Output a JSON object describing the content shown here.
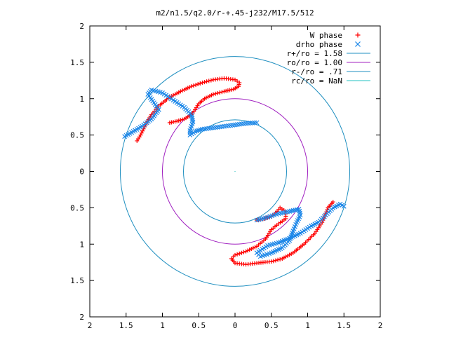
{
  "chart_data": {
    "type": "scatter",
    "title": "m2/n1.5/q2.0/r-+.45-j232/M17.5/512",
    "xlim": [
      2,
      -2
    ],
    "ylim": [
      -2,
      2
    ],
    "x_ticks": [
      {
        "value": 2,
        "label": "2"
      },
      {
        "value": 1.5,
        "label": "1.5"
      },
      {
        "value": 1,
        "label": "1"
      },
      {
        "value": 0.5,
        "label": "0.5"
      },
      {
        "value": 0,
        "label": "0"
      },
      {
        "value": -0.5,
        "label": "0.5"
      },
      {
        "value": -1,
        "label": "1"
      },
      {
        "value": -1.5,
        "label": "1.5"
      },
      {
        "value": -2,
        "label": "2"
      }
    ],
    "y_ticks": [
      {
        "value": 2,
        "label": "2"
      },
      {
        "value": 1.5,
        "label": "1.5"
      },
      {
        "value": 1,
        "label": "1"
      },
      {
        "value": 0.5,
        "label": "0.5"
      },
      {
        "value": 0,
        "label": "0"
      },
      {
        "value": -0.5,
        "label": "0.5"
      },
      {
        "value": -1,
        "label": "1"
      },
      {
        "value": -1.5,
        "label": "1.5"
      },
      {
        "value": -2,
        "label": "2"
      }
    ],
    "grid": false,
    "legend_position": "top-right",
    "series": [
      {
        "name": "W phase",
        "kind": "points",
        "marker": "+",
        "color": "#ff0000",
        "segments": [
          [
            [
              0.9,
              0.67
            ],
            [
              0.8,
              0.69
            ],
            [
              0.7,
              0.72
            ],
            [
              0.6,
              0.78
            ],
            [
              0.55,
              0.85
            ],
            [
              0.5,
              0.93
            ],
            [
              0.42,
              1.0
            ],
            [
              0.3,
              1.06
            ],
            [
              0.15,
              1.1
            ],
            [
              0.02,
              1.13
            ],
            [
              -0.05,
              1.17
            ],
            [
              -0.06,
              1.22
            ],
            [
              0.0,
              1.26
            ],
            [
              0.15,
              1.28
            ],
            [
              0.3,
              1.26
            ],
            [
              0.45,
              1.22
            ],
            [
              0.6,
              1.17
            ],
            [
              0.75,
              1.1
            ],
            [
              0.9,
              1.02
            ],
            [
              1.05,
              0.9
            ],
            [
              1.15,
              0.78
            ],
            [
              1.22,
              0.67
            ],
            [
              1.3,
              0.5
            ],
            [
              1.35,
              0.42
            ]
          ],
          [
            [
              -0.3,
              -0.67
            ],
            [
              -0.4,
              -0.65
            ],
            [
              -0.5,
              -0.62
            ],
            [
              -0.58,
              -0.55
            ],
            [
              -0.62,
              -0.5
            ],
            [
              -0.7,
              -0.55
            ],
            [
              -0.7,
              -0.65
            ],
            [
              -0.6,
              -0.72
            ],
            [
              -0.5,
              -0.8
            ],
            [
              -0.42,
              -0.93
            ],
            [
              -0.3,
              -1.03
            ],
            [
              -0.15,
              -1.1
            ],
            [
              0.0,
              -1.15
            ],
            [
              0.05,
              -1.2
            ],
            [
              0.0,
              -1.26
            ],
            [
              -0.15,
              -1.28
            ],
            [
              -0.3,
              -1.26
            ],
            [
              -0.5,
              -1.24
            ],
            [
              -0.65,
              -1.2
            ],
            [
              -0.8,
              -1.12
            ],
            [
              -0.95,
              -1.0
            ],
            [
              -1.1,
              -0.85
            ],
            [
              -1.2,
              -0.7
            ],
            [
              -1.28,
              -0.5
            ],
            [
              -1.35,
              -0.42
            ]
          ]
        ]
      },
      {
        "name": "drho phase",
        "kind": "points",
        "marker": "x",
        "color": "#1a86e8",
        "segments": [
          [
            [
              -0.3,
              0.67
            ],
            [
              -0.15,
              0.66
            ],
            [
              0.0,
              0.64
            ],
            [
              0.15,
              0.62
            ],
            [
              0.3,
              0.6
            ],
            [
              0.45,
              0.58
            ],
            [
              0.55,
              0.55
            ],
            [
              0.62,
              0.5
            ],
            [
              0.62,
              0.56
            ],
            [
              0.58,
              0.68
            ],
            [
              0.6,
              0.78
            ],
            [
              0.7,
              0.88
            ],
            [
              0.85,
              0.98
            ],
            [
              1.0,
              1.08
            ],
            [
              1.15,
              1.12
            ],
            [
              1.2,
              1.06
            ],
            [
              1.1,
              0.92
            ],
            [
              1.05,
              0.85
            ],
            [
              1.15,
              0.72
            ],
            [
              1.28,
              0.62
            ],
            [
              1.4,
              0.55
            ],
            [
              1.52,
              0.48
            ]
          ],
          [
            [
              -0.3,
              -0.67
            ],
            [
              -0.45,
              -0.63
            ],
            [
              -0.6,
              -0.58
            ],
            [
              -0.75,
              -0.55
            ],
            [
              -0.88,
              -0.52
            ],
            [
              -0.9,
              -0.6
            ],
            [
              -0.85,
              -0.7
            ],
            [
              -0.8,
              -0.82
            ],
            [
              -0.75,
              -0.95
            ],
            [
              -0.65,
              -1.05
            ],
            [
              -0.5,
              -1.12
            ],
            [
              -0.35,
              -1.17
            ],
            [
              -0.3,
              -1.12
            ],
            [
              -0.45,
              -1.02
            ],
            [
              -0.6,
              -0.98
            ],
            [
              -0.75,
              -0.92
            ],
            [
              -0.9,
              -0.85
            ],
            [
              -1.05,
              -0.75
            ],
            [
              -1.15,
              -0.7
            ],
            [
              -1.25,
              -0.6
            ],
            [
              -1.35,
              -0.5
            ],
            [
              -1.45,
              -0.45
            ],
            [
              -1.5,
              -0.48
            ]
          ]
        ]
      },
      {
        "name": "r+/ro = 1.58",
        "kind": "circle",
        "radius": 1.58,
        "color": "#1f8fc0"
      },
      {
        "name": "ro/ro = 1.00",
        "kind": "circle",
        "radius": 1.0,
        "color": "#a020c0"
      },
      {
        "name": "r-/ro = .71",
        "kind": "circle",
        "radius": 0.71,
        "color": "#1f8fc0"
      },
      {
        "name": "rc/ro = NaN",
        "kind": "circle",
        "radius": null,
        "color": "#20c0c0"
      }
    ]
  }
}
